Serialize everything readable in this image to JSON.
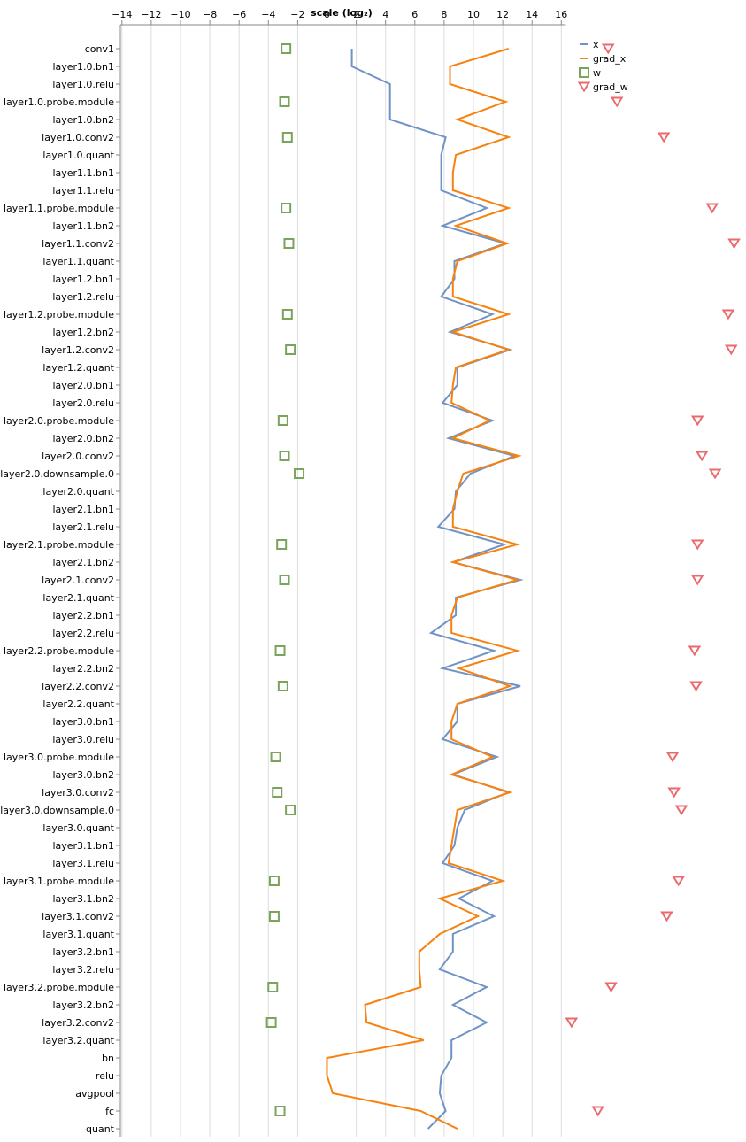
{
  "chart_data": {
    "type": "scatter",
    "title": "",
    "xlabel": "scale (log₂)",
    "ylabel": "",
    "xlim": [
      -15,
      16.3
    ],
    "xticks": [
      -14,
      -12,
      -10,
      -8,
      -6,
      -4,
      -2,
      0,
      2,
      4,
      6,
      8,
      10,
      12,
      14,
      16
    ],
    "xtick_labels": [
      "−14",
      "−12",
      "−10",
      "−8",
      "−6",
      "−4",
      "−2",
      "0",
      "2",
      "4",
      "6",
      "8",
      "10",
      "12",
      "14",
      "16"
    ],
    "grid": "vertical",
    "legend_position": "top-right",
    "categories": [
      "conv1",
      "layer1.0.bn1",
      "layer1.0.relu",
      "layer1.0.probe.module",
      "layer1.0.bn2",
      "layer1.0.conv2",
      "layer1.0.quant",
      "layer1.1.bn1",
      "layer1.1.relu",
      "layer1.1.probe.module",
      "layer1.1.bn2",
      "layer1.1.conv2",
      "layer1.1.quant",
      "layer1.2.bn1",
      "layer1.2.relu",
      "layer1.2.probe.module",
      "layer1.2.bn2",
      "layer1.2.conv2",
      "layer1.2.quant",
      "layer2.0.bn1",
      "layer2.0.relu",
      "layer2.0.probe.module",
      "layer2.0.bn2",
      "layer2.0.conv2",
      "layer2.0.downsample.0",
      "layer2.0.quant",
      "layer2.1.bn1",
      "layer2.1.relu",
      "layer2.1.probe.module",
      "layer2.1.bn2",
      "layer2.1.conv2",
      "layer2.1.quant",
      "layer2.2.bn1",
      "layer2.2.relu",
      "layer2.2.probe.module",
      "layer2.2.bn2",
      "layer2.2.conv2",
      "layer2.2.quant",
      "layer3.0.bn1",
      "layer3.0.relu",
      "layer3.0.probe.module",
      "layer3.0.bn2",
      "layer3.0.conv2",
      "layer3.0.downsample.0",
      "layer3.0.quant",
      "layer3.1.bn1",
      "layer3.1.relu",
      "layer3.1.probe.module",
      "layer3.1.bn2",
      "layer3.1.conv2",
      "layer3.1.quant",
      "layer3.2.bn1",
      "layer3.2.relu",
      "layer3.2.probe.module",
      "layer3.2.bn2",
      "layer3.2.conv2",
      "layer3.2.quant",
      "bn",
      "relu",
      "avgpool",
      "fc",
      "quant"
    ],
    "series": [
      {
        "name": "x",
        "mark": "line",
        "color": "#6f93c6",
        "values": [
          1.7,
          1.7,
          4.3,
          4.3,
          4.3,
          8.1,
          7.8,
          7.8,
          7.8,
          10.9,
          7.9,
          12.2,
          8.7,
          8.7,
          7.8,
          11.3,
          8.4,
          12.5,
          8.9,
          8.9,
          7.9,
          11.3,
          8.3,
          12.8,
          9.8,
          8.8,
          8.7,
          7.6,
          12.1,
          8.6,
          13.2,
          8.8,
          8.8,
          7.1,
          11.4,
          7.9,
          13.2,
          8.9,
          8.9,
          7.9,
          11.6,
          8.6,
          12.4,
          9.4,
          8.9,
          8.7,
          7.9,
          11.3,
          9.0,
          11.4,
          8.6,
          8.6,
          7.7,
          10.9,
          8.6,
          10.9,
          8.5,
          8.5,
          7.8,
          7.7,
          8.1,
          6.9
        ],
        "gaps_at": [
          "conv1"
        ]
      },
      {
        "name": "grad_x",
        "mark": "line",
        "color": "#f7820f",
        "values": [
          12.4,
          8.4,
          8.4,
          12.2,
          8.9,
          12.4,
          8.8,
          8.6,
          8.6,
          12.4,
          8.8,
          12.3,
          8.9,
          8.6,
          8.6,
          12.4,
          8.6,
          12.4,
          8.8,
          8.6,
          8.5,
          11.1,
          8.6,
          13.1,
          9.3,
          8.9,
          8.6,
          8.6,
          13.0,
          8.6,
          13.0,
          8.9,
          8.5,
          8.5,
          13.0,
          9.0,
          12.5,
          8.9,
          8.5,
          8.5,
          11.3,
          8.5,
          12.5,
          8.9,
          8.7,
          8.5,
          8.3,
          12.0,
          7.7,
          10.3,
          7.7,
          6.3,
          6.3,
          6.4,
          2.6,
          2.7,
          6.6,
          0.0,
          0.0,
          0.4,
          6.4,
          8.9
        ]
      },
      {
        "name": "w",
        "mark": "square",
        "color": "#7aa35c",
        "points": [
          [
            "conv1",
            -2.8
          ],
          [
            "layer1.0.probe.module",
            -2.9
          ],
          [
            "layer1.0.conv2",
            -2.7
          ],
          [
            "layer1.1.probe.module",
            -2.8
          ],
          [
            "layer1.1.conv2",
            -2.6
          ],
          [
            "layer1.2.probe.module",
            -2.7
          ],
          [
            "layer1.2.conv2",
            -2.5
          ],
          [
            "layer2.0.probe.module",
            -3.0
          ],
          [
            "layer2.0.conv2",
            -2.9
          ],
          [
            "layer2.0.downsample.0",
            -1.9
          ],
          [
            "layer2.1.probe.module",
            -3.1
          ],
          [
            "layer2.1.conv2",
            -2.9
          ],
          [
            "layer2.2.probe.module",
            -3.2
          ],
          [
            "layer2.2.conv2",
            -3.0
          ],
          [
            "layer3.0.probe.module",
            -3.5
          ],
          [
            "layer3.0.conv2",
            -3.4
          ],
          [
            "layer3.0.downsample.0",
            -2.5
          ],
          [
            "layer3.1.probe.module",
            -3.6
          ],
          [
            "layer3.1.conv2",
            -3.6
          ],
          [
            "layer3.2.probe.module",
            -3.7
          ],
          [
            "layer3.2.conv2",
            -3.8
          ],
          [
            "fc",
            -3.2
          ]
        ]
      },
      {
        "name": "grad_w",
        "mark": "triangle-down",
        "color": "#ea6a6e",
        "points": [
          [
            "conv1",
            19.2
          ],
          [
            "layer1.0.probe.module",
            19.8
          ],
          [
            "layer1.0.conv2",
            23.0
          ],
          [
            "layer1.1.probe.module",
            26.3
          ],
          [
            "layer1.1.conv2",
            27.8
          ],
          [
            "layer1.2.probe.module",
            27.4
          ],
          [
            "layer1.2.conv2",
            27.6
          ],
          [
            "layer2.0.probe.module",
            25.3
          ],
          [
            "layer2.0.conv2",
            25.6
          ],
          [
            "layer2.0.downsample.0",
            26.5
          ],
          [
            "layer2.1.probe.module",
            25.3
          ],
          [
            "layer2.1.conv2",
            25.3
          ],
          [
            "layer2.2.probe.module",
            25.1
          ],
          [
            "layer2.2.conv2",
            25.2
          ],
          [
            "layer3.0.probe.module",
            23.6
          ],
          [
            "layer3.0.conv2",
            23.7
          ],
          [
            "layer3.0.downsample.0",
            24.2
          ],
          [
            "layer3.1.probe.module",
            24.0
          ],
          [
            "layer3.1.conv2",
            23.2
          ],
          [
            "layer3.2.probe.module",
            19.4
          ],
          [
            "layer3.2.conv2",
            16.7
          ],
          [
            "fc",
            18.5
          ]
        ]
      }
    ],
    "legend": [
      {
        "label": "x",
        "symbol": "line",
        "color": "#6f93c6"
      },
      {
        "label": "grad_x",
        "symbol": "line",
        "color": "#f7820f"
      },
      {
        "label": "w",
        "symbol": "square",
        "color": "#7aa35c"
      },
      {
        "label": "grad_w",
        "symbol": "triangle-down",
        "color": "#ea6a6e"
      }
    ]
  }
}
